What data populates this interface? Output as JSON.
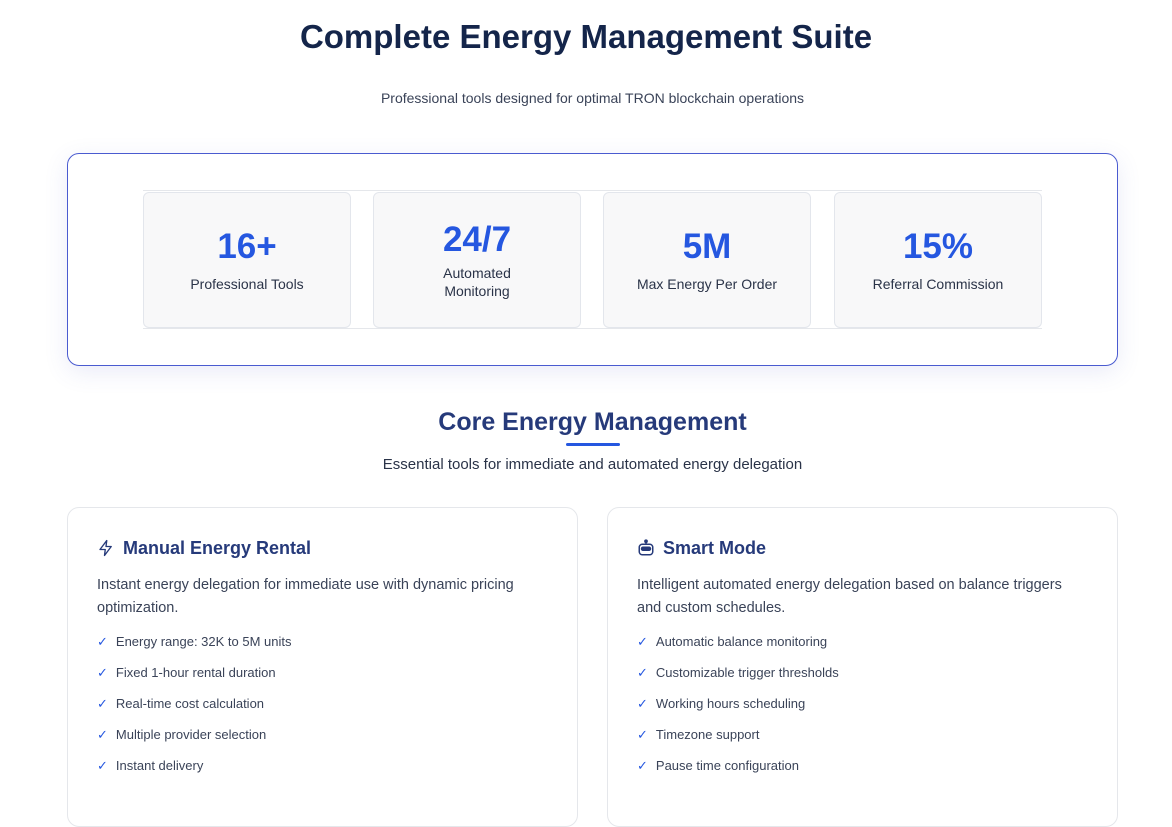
{
  "header": {
    "title": "Complete Energy Management Suite",
    "subtitle": "Professional tools designed for optimal TRON blockchain operations"
  },
  "stats": [
    {
      "value": "16+",
      "label": "Professional Tools"
    },
    {
      "value": "24/7",
      "label": "Automated Monitoring"
    },
    {
      "value": "5M",
      "label": "Max Energy Per Order"
    },
    {
      "value": "15%",
      "label": "Referral Commission"
    }
  ],
  "core": {
    "title": "Core Energy Management",
    "subtitle": "Essential tools for immediate and automated energy delegation"
  },
  "cards": [
    {
      "icon": "lightning-icon",
      "title": "Manual Energy Rental",
      "description": "Instant energy delegation for immediate use with dynamic pricing optimization.",
      "features": [
        "Energy range: 32K to 5M units",
        "Fixed 1-hour rental duration",
        "Real-time cost calculation",
        "Multiple provider selection",
        "Instant delivery"
      ]
    },
    {
      "icon": "robot-icon",
      "title": "Smart Mode",
      "description": "Intelligent automated energy delegation based on balance triggers and custom schedules.",
      "features": [
        "Automatic balance monitoring",
        "Customizable trigger thresholds",
        "Working hours scheduling",
        "Timezone support",
        "Pause time configuration"
      ]
    }
  ],
  "colors": {
    "accent": "#2557e0",
    "heading": "#14254a"
  }
}
